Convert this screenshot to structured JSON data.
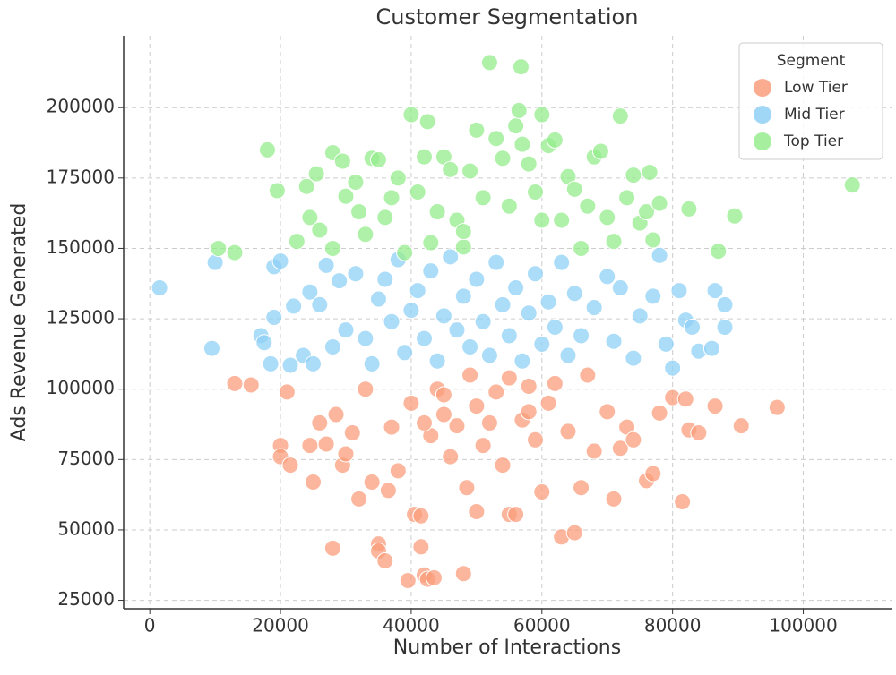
{
  "chart_data": {
    "type": "scatter",
    "title": "Customer Segmentation",
    "xlabel": "Number of Interactions",
    "ylabel": "Ads Revenue Generated",
    "legend_title": "Segment",
    "legend": "upper right",
    "grid": true,
    "xlim": [
      -4000,
      113500
    ],
    "ylim": [
      22000,
      225500
    ],
    "xticks": [
      0,
      20000,
      40000,
      60000,
      80000,
      100000
    ],
    "yticks": [
      25000,
      50000,
      75000,
      100000,
      125000,
      150000,
      175000,
      200000
    ],
    "series": [
      {
        "name": "Low Tier",
        "color": "#fa9e7c",
        "x": [
          13000,
          15500,
          21000,
          20000,
          20000,
          21500,
          25000,
          24500,
          26000,
          27000,
          28000,
          28500,
          29500,
          30000,
          31000,
          32000,
          33000,
          34000,
          35000,
          35000,
          36000,
          36500,
          37000,
          38000,
          39500,
          40000,
          40500,
          41500,
          41500,
          42000,
          42500,
          43500,
          43000,
          44000,
          45000,
          46000,
          47000,
          48000,
          48500,
          49000,
          50000,
          51000,
          52000,
          53000,
          54000,
          55000,
          56000,
          57000,
          58000,
          59000,
          60000,
          61000,
          63000,
          64000,
          65000,
          66000,
          67000,
          68000,
          70000,
          71000,
          72000,
          73000,
          74000,
          76000,
          77000,
          78000,
          80000,
          81500,
          82000,
          82500,
          84000,
          86500,
          90500,
          96000,
          55000,
          45000,
          62000,
          50000,
          58000,
          42000
        ],
        "values": [
          102000,
          101500,
          99000,
          80000,
          76000,
          73000,
          67000,
          80000,
          88000,
          80500,
          43500,
          91000,
          73000,
          77000,
          84500,
          61000,
          100000,
          67000,
          45000,
          42500,
          39000,
          64000,
          86500,
          71000,
          32000,
          95000,
          55500,
          55000,
          44000,
          34000,
          32500,
          33000,
          83500,
          100000,
          91000,
          76000,
          87000,
          34500,
          65000,
          105000,
          56500,
          80000,
          88000,
          99000,
          73000,
          55500,
          55500,
          89000,
          101000,
          82000,
          63500,
          95000,
          47500,
          85000,
          49000,
          65000,
          105000,
          78000,
          92000,
          61000,
          79000,
          86500,
          82000,
          67500,
          70000,
          91500,
          97000,
          60000,
          96500,
          85500,
          84500,
          94000,
          87000,
          93500,
          104000,
          98000,
          102000,
          94000,
          92000,
          88000
        ]
      },
      {
        "name": "Mid Tier",
        "color": "#8fd0f5",
        "x": [
          1500,
          9500,
          10000,
          17000,
          17500,
          18500,
          19000,
          19000,
          20000,
          21500,
          22000,
          23500,
          24500,
          25000,
          26000,
          27000,
          28000,
          29000,
          30000,
          31500,
          33000,
          34000,
          35000,
          36000,
          37000,
          38000,
          39000,
          40000,
          41000,
          42000,
          43000,
          44000,
          45000,
          46000,
          47000,
          48000,
          49000,
          50000,
          51000,
          52000,
          53000,
          54000,
          55000,
          56000,
          57000,
          58000,
          59000,
          60000,
          61000,
          62000,
          63000,
          64000,
          65000,
          66000,
          68000,
          70000,
          71000,
          72000,
          74000,
          75000,
          77000,
          78000,
          79000,
          80000,
          81000,
          82000,
          83000,
          84000,
          86000,
          86500,
          88000,
          88000
        ],
        "values": [
          136000,
          114500,
          145000,
          119000,
          116500,
          109000,
          125500,
          143500,
          145500,
          108500,
          129500,
          112000,
          134500,
          109000,
          130000,
          144000,
          115000,
          138500,
          121000,
          141000,
          118000,
          109000,
          132000,
          139000,
          124000,
          146000,
          113000,
          128000,
          135000,
          118000,
          142000,
          110000,
          126000,
          147000,
          121000,
          133000,
          115000,
          139000,
          124000,
          112000,
          145000,
          130000,
          119000,
          136000,
          110000,
          127000,
          141000,
          116000,
          131000,
          122000,
          145000,
          112000,
          134000,
          119000,
          129000,
          140000,
          117000,
          136000,
          111000,
          126000,
          133000,
          147500,
          116000,
          107500,
          135000,
          124500,
          122000,
          113500,
          114500,
          135000,
          130000,
          122000
        ]
      },
      {
        "name": "Top Tier",
        "color": "#96ec8e",
        "x": [
          18000,
          19500,
          10500,
          13000,
          22500,
          24000,
          24500,
          25500,
          26000,
          28000,
          28000,
          29500,
          30000,
          31500,
          32000,
          33000,
          34000,
          35000,
          36000,
          37000,
          38000,
          39000,
          40000,
          41000,
          42000,
          42500,
          43000,
          44000,
          45000,
          46000,
          47000,
          48000,
          49000,
          50000,
          51000,
          52000,
          53000,
          54000,
          55000,
          56000,
          56500,
          56800,
          57000,
          58000,
          59000,
          60000,
          61000,
          62000,
          63000,
          64000,
          65000,
          66000,
          67000,
          68000,
          69000,
          70000,
          71000,
          72000,
          73000,
          74000,
          75000,
          76000,
          76500,
          77000,
          78000,
          82500,
          87000,
          89500,
          107500,
          60000,
          48000
        ],
        "values": [
          185000,
          170500,
          150000,
          148500,
          152500,
          172000,
          161000,
          176500,
          156500,
          184000,
          150000,
          181000,
          168500,
          173500,
          163000,
          155000,
          182000,
          181500,
          161000,
          168000,
          175000,
          148500,
          197500,
          170000,
          182500,
          195000,
          152000,
          163000,
          182500,
          178000,
          160000,
          150500,
          177500,
          192000,
          168000,
          216000,
          189000,
          182000,
          165000,
          193500,
          199000,
          214500,
          187000,
          180000,
          170000,
          197500,
          186500,
          188500,
          160000,
          175500,
          171000,
          150000,
          165000,
          182500,
          184500,
          161000,
          152500,
          197000,
          168000,
          176000,
          159000,
          163000,
          177000,
          153000,
          166000,
          164000,
          149000,
          161500,
          172500,
          160000,
          156000
        ]
      }
    ]
  }
}
